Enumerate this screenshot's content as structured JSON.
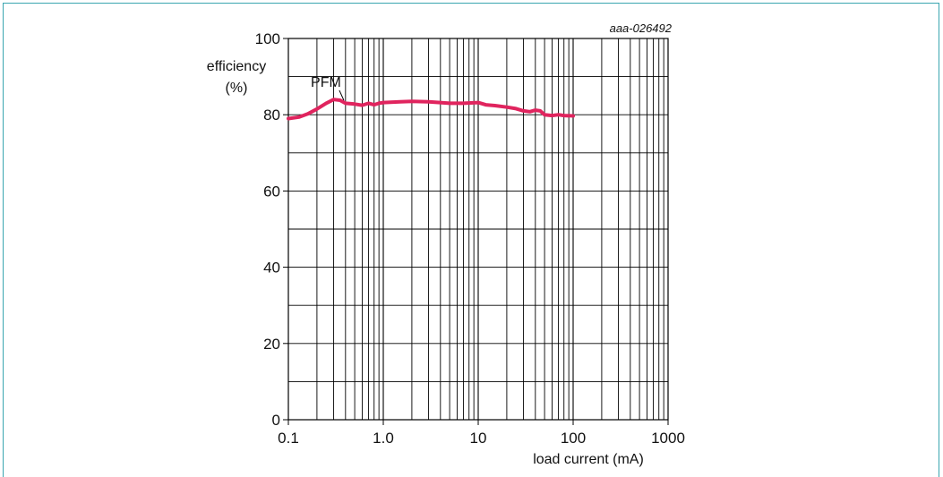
{
  "chart_data": {
    "type": "line",
    "figure_code": "aaa-026492",
    "ylabel_line1": "efficiency",
    "ylabel_line2": "(%)",
    "xlabel": "load current (mA)",
    "x_scale": "log",
    "xlim": [
      0.1,
      1000
    ],
    "ylim": [
      0,
      100
    ],
    "x_tick_labels": [
      {
        "value": 0.1,
        "label": "0.1"
      },
      {
        "value": 1,
        "label": "1.0"
      },
      {
        "value": 10,
        "label": "10"
      },
      {
        "value": 100,
        "label": "100"
      },
      {
        "value": 1000,
        "label": "1000"
      }
    ],
    "y_tick_labels": [
      {
        "value": 0,
        "label": "0"
      },
      {
        "value": 20,
        "label": "20"
      },
      {
        "value": 40,
        "label": "40"
      },
      {
        "value": 60,
        "label": "60"
      },
      {
        "value": 80,
        "label": "80"
      },
      {
        "value": 100,
        "label": "100"
      }
    ],
    "grid": true,
    "annotation": {
      "text": "PFM",
      "x": 0.2,
      "y": 85
    },
    "series": [
      {
        "color": "#e0245e",
        "x": [
          0.1,
          0.13,
          0.16,
          0.2,
          0.25,
          0.3,
          0.35,
          0.4,
          0.5,
          0.6,
          0.7,
          0.8,
          0.9,
          1.0,
          1.5,
          2,
          3,
          5,
          7,
          10,
          12,
          15,
          20,
          25,
          30,
          35,
          40,
          45,
          50,
          60,
          70,
          80,
          100
        ],
        "y": [
          79.0,
          79.4,
          80.2,
          81.5,
          83.0,
          84.0,
          83.8,
          83.0,
          82.8,
          82.5,
          83.0,
          82.6,
          83.0,
          83.2,
          83.4,
          83.5,
          83.4,
          83.0,
          83.0,
          83.2,
          82.6,
          82.4,
          82.0,
          81.6,
          81.0,
          80.8,
          81.2,
          81.0,
          80.0,
          79.8,
          80.0,
          79.8,
          79.7
        ]
      }
    ]
  }
}
